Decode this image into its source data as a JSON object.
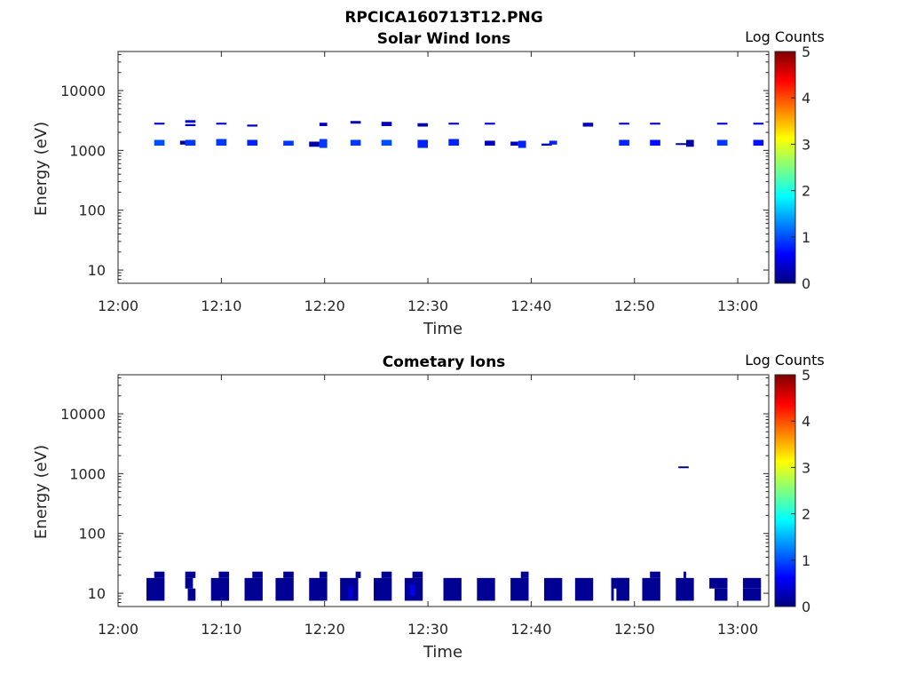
{
  "figure_title": "RPCICA160713T12.PNG",
  "colorbar_label": "Log Counts",
  "colorscale": [
    "#00007f",
    "#0000ff",
    "#007fff",
    "#00ffff",
    "#7fff7f",
    "#ffff00",
    "#ff7f00",
    "#ff0000",
    "#7f0000"
  ],
  "chart_data": [
    {
      "type": "heatmap",
      "title": "Solar Wind Ions",
      "xlabel": "Time",
      "ylabel": "Energy (eV)",
      "xlim": [
        "12:00",
        "13:03"
      ],
      "ylim": [
        6,
        45000
      ],
      "yscale": "log",
      "xticks": [
        "12:00",
        "12:10",
        "12:20",
        "12:30",
        "12:40",
        "12:50",
        "13:00"
      ],
      "yticks": [
        10,
        100,
        1000,
        10000
      ],
      "colorbar": {
        "label": "Log Counts",
        "range": [
          0,
          5
        ],
        "ticks": [
          0,
          1,
          2,
          3,
          4,
          5
        ]
      },
      "cells": [
        {
          "t0": "12:03:30",
          "t1": "12:04:30",
          "e0": 2700,
          "e1": 2900,
          "v": 0.4
        },
        {
          "t0": "12:03:30",
          "t1": "12:04:30",
          "e0": 1200,
          "e1": 1500,
          "v": 1.0
        },
        {
          "t0": "12:06:00",
          "t1": "12:06:45",
          "e0": 1250,
          "e1": 1450,
          "v": 0.2
        },
        {
          "t0": "12:06:30",
          "t1": "12:07:30",
          "e0": 2900,
          "e1": 3200,
          "v": 0.4
        },
        {
          "t0": "12:06:30",
          "t1": "12:07:30",
          "e0": 2550,
          "e1": 2750,
          "v": 0.3
        },
        {
          "t0": "12:06:30",
          "t1": "12:07:30",
          "e0": 1200,
          "e1": 1500,
          "v": 0.9
        },
        {
          "t0": "12:09:30",
          "t1": "12:10:30",
          "e0": 2700,
          "e1": 2900,
          "v": 0.4
        },
        {
          "t0": "12:09:30",
          "t1": "12:10:30",
          "e0": 1200,
          "e1": 1550,
          "v": 0.9
        },
        {
          "t0": "12:12:30",
          "t1": "12:13:30",
          "e0": 2500,
          "e1": 2700,
          "v": 0.4
        },
        {
          "t0": "12:12:30",
          "t1": "12:13:30",
          "e0": 1200,
          "e1": 1500,
          "v": 0.8
        },
        {
          "t0": "12:16:00",
          "t1": "12:17:00",
          "e0": 1200,
          "e1": 1450,
          "v": 0.9
        },
        {
          "t0": "12:18:30",
          "t1": "12:19:30",
          "e0": 1150,
          "e1": 1400,
          "v": 0.2
        },
        {
          "t0": "12:19:30",
          "t1": "12:20:15",
          "e0": 2550,
          "e1": 2900,
          "v": 0.3
        },
        {
          "t0": "12:19:30",
          "t1": "12:20:15",
          "e0": 1100,
          "e1": 1550,
          "v": 0.9
        },
        {
          "t0": "12:22:30",
          "t1": "12:23:30",
          "e0": 2800,
          "e1": 3100,
          "v": 0.3
        },
        {
          "t0": "12:22:30",
          "t1": "12:23:30",
          "e0": 1200,
          "e1": 1500,
          "v": 0.9
        },
        {
          "t0": "12:25:30",
          "t1": "12:26:30",
          "e0": 2550,
          "e1": 3000,
          "v": 0.3
        },
        {
          "t0": "12:25:30",
          "t1": "12:26:30",
          "e0": 1200,
          "e1": 1500,
          "v": 1.0
        },
        {
          "t0": "12:29:00",
          "t1": "12:30:00",
          "e0": 2500,
          "e1": 2850,
          "v": 0.3
        },
        {
          "t0": "12:29:00",
          "t1": "12:30:00",
          "e0": 1100,
          "e1": 1500,
          "v": 0.8
        },
        {
          "t0": "12:32:00",
          "t1": "12:33:00",
          "e0": 2700,
          "e1": 2900,
          "v": 0.4
        },
        {
          "t0": "12:32:00",
          "t1": "12:33:00",
          "e0": 1200,
          "e1": 1550,
          "v": 0.8
        },
        {
          "t0": "12:35:30",
          "t1": "12:36:30",
          "e0": 2700,
          "e1": 2900,
          "v": 0.4
        },
        {
          "t0": "12:35:30",
          "t1": "12:36:30",
          "e0": 1200,
          "e1": 1450,
          "v": 0.3
        },
        {
          "t0": "12:38:00",
          "t1": "12:38:45",
          "e0": 1200,
          "e1": 1400,
          "v": 0.3
        },
        {
          "t0": "12:38:45",
          "t1": "12:39:30",
          "e0": 1100,
          "e1": 1450,
          "v": 0.8
        },
        {
          "t0": "12:41:00",
          "t1": "12:42:00",
          "e0": 1200,
          "e1": 1300,
          "v": 0.2
        },
        {
          "t0": "12:41:45",
          "t1": "12:42:30",
          "e0": 1250,
          "e1": 1450,
          "v": 0.8
        },
        {
          "t0": "12:45:00",
          "t1": "12:46:00",
          "e0": 2500,
          "e1": 2900,
          "v": 0.3
        },
        {
          "t0": "12:48:30",
          "t1": "12:49:30",
          "e0": 2700,
          "e1": 2900,
          "v": 0.4
        },
        {
          "t0": "12:48:30",
          "t1": "12:49:30",
          "e0": 1200,
          "e1": 1500,
          "v": 0.8
        },
        {
          "t0": "12:51:30",
          "t1": "12:52:30",
          "e0": 2700,
          "e1": 2900,
          "v": 0.4
        },
        {
          "t0": "12:51:30",
          "t1": "12:52:30",
          "e0": 1200,
          "e1": 1500,
          "v": 0.7
        },
        {
          "t0": "12:54:00",
          "t1": "12:55:30",
          "e0": 1250,
          "e1": 1320,
          "v": 0.3
        },
        {
          "t0": "12:55:00",
          "t1": "12:55:45",
          "e0": 1150,
          "e1": 1500,
          "v": 0.2
        },
        {
          "t0": "12:58:00",
          "t1": "12:59:00",
          "e0": 2700,
          "e1": 2900,
          "v": 0.4
        },
        {
          "t0": "12:58:00",
          "t1": "12:59:00",
          "e0": 1200,
          "e1": 1500,
          "v": 0.9
        },
        {
          "t0": "13:01:30",
          "t1": "13:02:30",
          "e0": 2700,
          "e1": 2900,
          "v": 0.4
        },
        {
          "t0": "13:01:30",
          "t1": "13:02:30",
          "e0": 1200,
          "e1": 1500,
          "v": 0.7
        }
      ]
    },
    {
      "type": "heatmap",
      "title": "Cometary Ions",
      "xlabel": "Time",
      "ylabel": "Energy (eV)",
      "xlim": [
        "12:00",
        "13:03"
      ],
      "ylim": [
        6,
        45000
      ],
      "yscale": "log",
      "xticks": [
        "12:00",
        "12:10",
        "12:20",
        "12:30",
        "12:40",
        "12:50",
        "13:00"
      ],
      "yticks": [
        10,
        100,
        1000,
        10000
      ],
      "colorbar": {
        "label": "Log Counts",
        "range": [
          0,
          5
        ],
        "ticks": [
          0,
          1,
          2,
          3,
          4,
          5
        ]
      },
      "cells": [
        {
          "t0": "12:02:45",
          "t1": "12:04:30",
          "e0": 7.5,
          "e1": 18,
          "v": 0.1
        },
        {
          "t0": "12:03:30",
          "t1": "12:04:30",
          "e0": 18,
          "e1": 23,
          "v": 0.1
        },
        {
          "t0": "12:06:30",
          "t1": "12:07:15",
          "e0": 12,
          "e1": 18,
          "v": 0.1
        },
        {
          "t0": "12:06:30",
          "t1": "12:07:30",
          "e0": 18,
          "e1": 23,
          "v": 0.1
        },
        {
          "t0": "12:06:45",
          "t1": "12:07:30",
          "e0": 7.5,
          "e1": 12,
          "v": 0.1
        },
        {
          "t0": "12:09:00",
          "t1": "12:10:45",
          "e0": 7.5,
          "e1": 18,
          "v": 0.1
        },
        {
          "t0": "12:09:45",
          "t1": "12:10:45",
          "e0": 18,
          "e1": 23,
          "v": 0.1
        },
        {
          "t0": "12:12:15",
          "t1": "12:14:00",
          "e0": 7.5,
          "e1": 18,
          "v": 0.1
        },
        {
          "t0": "12:13:00",
          "t1": "12:14:00",
          "e0": 18,
          "e1": 23,
          "v": 0.1
        },
        {
          "t0": "12:15:15",
          "t1": "12:17:00",
          "e0": 7.5,
          "e1": 18,
          "v": 0.1
        },
        {
          "t0": "12:16:00",
          "t1": "12:17:00",
          "e0": 18,
          "e1": 23,
          "v": 0.1
        },
        {
          "t0": "12:18:30",
          "t1": "12:20:15",
          "e0": 7.5,
          "e1": 18,
          "v": 0.1
        },
        {
          "t0": "12:19:30",
          "t1": "12:20:15",
          "e0": 18,
          "e1": 23,
          "v": 0.1
        },
        {
          "t0": "12:21:30",
          "t1": "12:23:15",
          "e0": 7.5,
          "e1": 18,
          "v": 0.1
        },
        {
          "t0": "12:22:15",
          "t1": "12:22:45",
          "e0": 8,
          "e1": 13,
          "v": 0.4
        },
        {
          "t0": "12:23:00",
          "t1": "12:23:30",
          "e0": 18,
          "e1": 23,
          "v": 0.1
        },
        {
          "t0": "12:24:45",
          "t1": "12:26:30",
          "e0": 7.5,
          "e1": 18,
          "v": 0.1
        },
        {
          "t0": "12:25:30",
          "t1": "12:26:30",
          "e0": 18,
          "e1": 23,
          "v": 0.1
        },
        {
          "t0": "12:27:45",
          "t1": "12:29:30",
          "e0": 7.5,
          "e1": 18,
          "v": 0.1
        },
        {
          "t0": "12:28:30",
          "t1": "12:29:30",
          "e0": 18,
          "e1": 23,
          "v": 0.1
        },
        {
          "t0": "12:28:15",
          "t1": "12:28:45",
          "e0": 9,
          "e1": 14,
          "v": 0.5
        },
        {
          "t0": "12:31:30",
          "t1": "12:33:15",
          "e0": 7.5,
          "e1": 18,
          "v": 0.1
        },
        {
          "t0": "12:34:45",
          "t1": "12:36:30",
          "e0": 7.5,
          "e1": 18,
          "v": 0.1
        },
        {
          "t0": "12:38:00",
          "t1": "12:39:45",
          "e0": 7.5,
          "e1": 18,
          "v": 0.1
        },
        {
          "t0": "12:39:00",
          "t1": "12:39:45",
          "e0": 18,
          "e1": 23,
          "v": 0.1
        },
        {
          "t0": "12:41:15",
          "t1": "12:43:00",
          "e0": 7.5,
          "e1": 18,
          "v": 0.1
        },
        {
          "t0": "12:44:15",
          "t1": "12:46:00",
          "e0": 7.5,
          "e1": 18,
          "v": 0.1
        },
        {
          "t0": "12:47:45",
          "t1": "12:48:00",
          "e0": 7.5,
          "e1": 18,
          "v": 0.1
        },
        {
          "t0": "12:48:15",
          "t1": "12:49:30",
          "e0": 7.5,
          "e1": 18,
          "v": 0.1
        },
        {
          "t0": "12:47:45",
          "t1": "12:49:30",
          "e0": 12,
          "e1": 18,
          "v": 0.1
        },
        {
          "t0": "12:50:45",
          "t1": "12:52:30",
          "e0": 7.5,
          "e1": 18,
          "v": 0.1
        },
        {
          "t0": "12:51:30",
          "t1": "12:52:30",
          "e0": 18,
          "e1": 23,
          "v": 0.1
        },
        {
          "t0": "12:54:00",
          "t1": "12:55:45",
          "e0": 7.5,
          "e1": 18,
          "v": 0.1
        },
        {
          "t0": "12:54:45",
          "t1": "12:55:00",
          "e0": 18,
          "e1": 23,
          "v": 0.1
        },
        {
          "t0": "12:54:15",
          "t1": "12:55:15",
          "e0": 1250,
          "e1": 1320,
          "v": 0.1
        },
        {
          "t0": "12:57:15",
          "t1": "12:59:00",
          "e0": 12,
          "e1": 18,
          "v": 0.1
        },
        {
          "t0": "12:57:45",
          "t1": "12:59:00",
          "e0": 7.5,
          "e1": 12,
          "v": 0.1
        },
        {
          "t0": "13:00:30",
          "t1": "13:02:15",
          "e0": 12,
          "e1": 18,
          "v": 0.1
        },
        {
          "t0": "13:00:30",
          "t1": "13:02:15",
          "e0": 7.5,
          "e1": 12,
          "v": 0.1
        }
      ]
    }
  ]
}
